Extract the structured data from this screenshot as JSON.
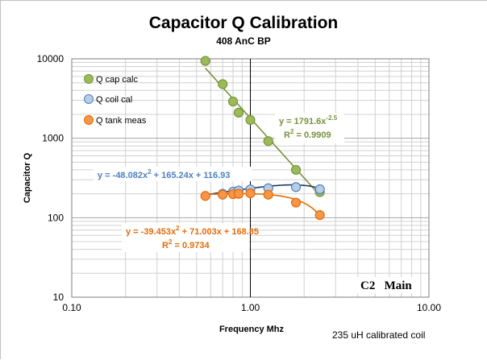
{
  "chart_data": {
    "type": "scatter",
    "title": "Capacitor Q Calibration",
    "subtitle": "408 AnC BP",
    "xlabel": "Frequency Mhz",
    "ylabel": "Capacitor Q",
    "x_scale": "log",
    "y_scale": "log",
    "xlim": [
      0.1,
      10
    ],
    "ylim": [
      10,
      10000
    ],
    "x_ticks": [
      "0.10",
      "1.00",
      "10.00"
    ],
    "y_ticks": [
      "10",
      "100",
      "1000",
      "10000"
    ],
    "grid": true,
    "legend_position": "top-left",
    "series": [
      {
        "name": "Q cap calc",
        "color": "#9bbb59",
        "edge": "#77933c",
        "x": [
          0.56,
          0.7,
          0.8,
          0.86,
          1.0,
          1.26,
          1.8,
          2.45
        ],
        "y": [
          9400,
          4800,
          2900,
          2100,
          1700,
          920,
          400,
          210
        ]
      },
      {
        "name": "Q coil cal",
        "color": "#b8cce4",
        "edge": "#4f81bd",
        "x": [
          0.7,
          0.8,
          0.86,
          1.0,
          1.26,
          1.8,
          2.45
        ],
        "y": [
          200,
          213,
          220,
          227,
          235,
          243,
          228
        ]
      },
      {
        "name": "Q tank meas",
        "color": "#f79646",
        "edge": "#e46c0a",
        "x": [
          0.56,
          0.7,
          0.8,
          0.86,
          1.0,
          1.26,
          1.8,
          2.45
        ],
        "y": [
          188,
          195,
          198,
          200,
          203,
          195,
          155,
          108
        ]
      }
    ],
    "trendlines": [
      {
        "series": "Q cap calc",
        "kind": "power",
        "a": 1791.6,
        "b": -2.5,
        "x_range": [
          0.56,
          2.45
        ],
        "color": "#77933c",
        "equation_main": "y = 1791.6x",
        "equation_exp": "-2.5",
        "r2_main": "R",
        "r2_sup": "2",
        "r2_value": " = 0.9909"
      },
      {
        "series": "Q coil cal",
        "kind": "poly2",
        "c2": -48.082,
        "c1": 165.24,
        "c0": 116.93,
        "x_range": [
          0.56,
          2.45
        ],
        "color": "#1f3864",
        "label_color": "#4f81bd",
        "equation_parts": [
          "y = -48.082x",
          "2",
          " + 165.24x + 116.93"
        ]
      },
      {
        "series": "Q tank meas",
        "kind": "poly2",
        "c2": -39.453,
        "c1": 71.003,
        "c0": 168.85,
        "x_range": [
          0.56,
          2.45
        ],
        "color": "#e46c0a",
        "label_color": "#e46c0a",
        "equation_parts": [
          "y = -39.453x",
          "2",
          " + 71.003x + 168.85"
        ],
        "r2_main": "R",
        "r2_sup": "2",
        "r2_value": " = 0.9734"
      }
    ],
    "annotations": {
      "corner_label": "C2   Main",
      "coil_note": "235 uH calibrated coil"
    }
  }
}
